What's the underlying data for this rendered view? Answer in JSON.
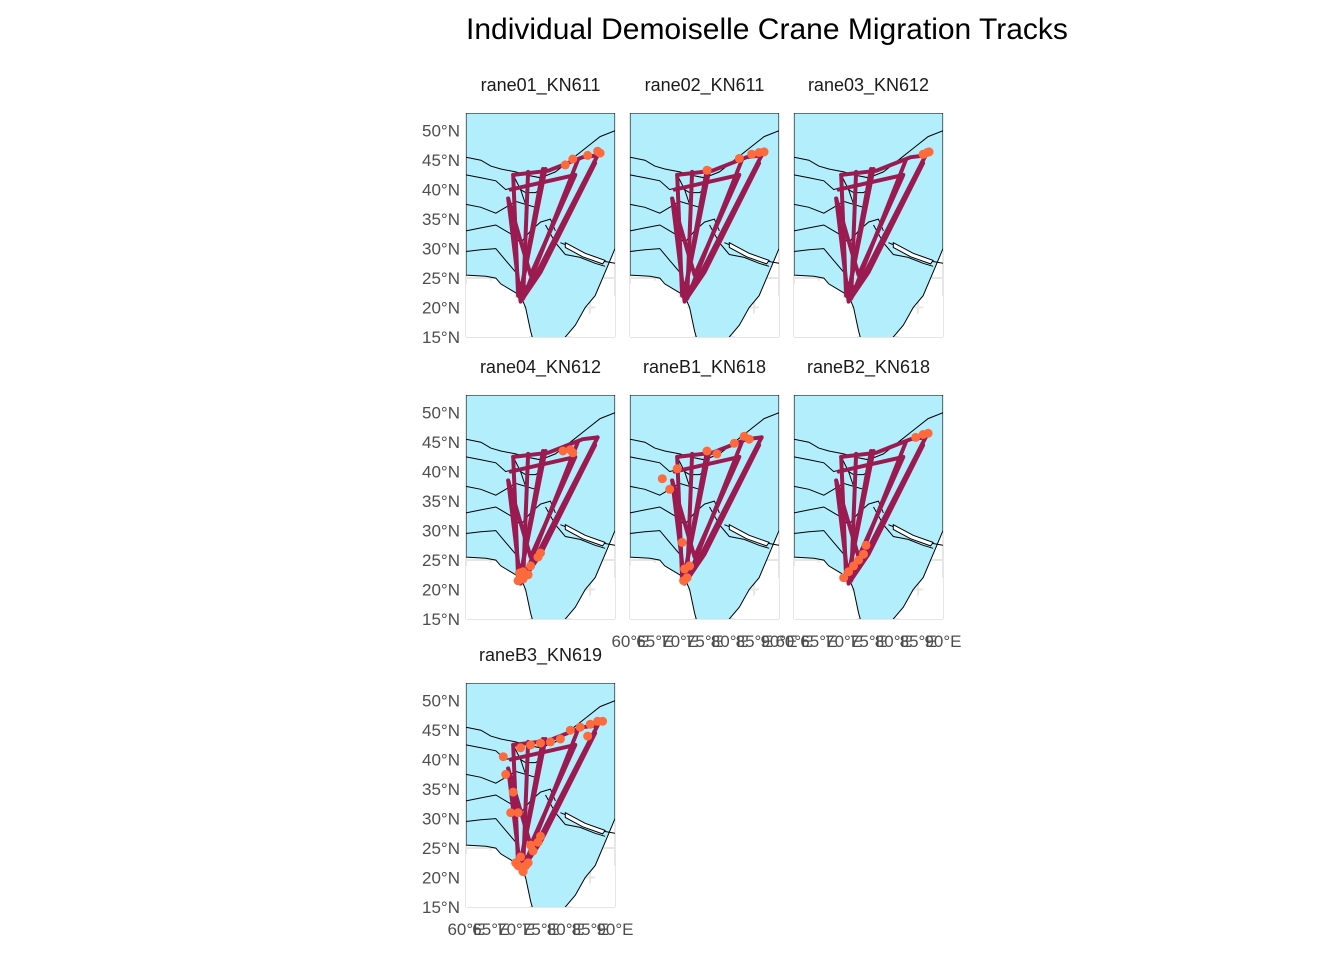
{
  "title": "Individual Demoiselle Crane Migration Tracks",
  "colors": {
    "land": "#b3eefc",
    "land_outline": "#000000",
    "track": "#9b1b50",
    "points": "#ff6a3d",
    "grid": "#e6e6e6",
    "tick_text": "#4d4d4d"
  },
  "chart_data": {
    "type": "map",
    "grid": true,
    "xlim": [
      60,
      90
    ],
    "ylim": [
      15,
      53
    ],
    "y_ticks": [
      15,
      20,
      25,
      30,
      35,
      40,
      45,
      50
    ],
    "y_tick_labels": [
      "15°N",
      "20°N",
      "25°N",
      "30°N",
      "35°N",
      "40°N",
      "45°N",
      "50°N"
    ],
    "x_ticks": [
      60,
      65,
      70,
      75,
      80,
      85,
      90
    ],
    "x_tick_labels": [
      "60°E",
      "65°E",
      "70°E",
      "75°E",
      "80°E",
      "85°E",
      "90°E"
    ],
    "panels": [
      {
        "name": "crane01_KN611",
        "label": "rane01_KN611",
        "tracks": [
          [
            [
              69.5,
              42.5
            ],
            [
              76.5,
              43.2
            ],
            [
              83.5,
              45.5
            ],
            [
              86.5,
              45.8
            ]
          ],
          [
            [
              86.5,
              45.8
            ],
            [
              73.5,
              24.5
            ],
            [
              70.5,
              22.0
            ],
            [
              69.5,
              42.5
            ]
          ],
          [
            [
              68.5,
              38.5
            ],
            [
              71.0,
              21.0
            ],
            [
              75.0,
              26.0
            ],
            [
              86.0,
              44.5
            ]
          ],
          [
            [
              69.0,
              40.0
            ],
            [
              82.0,
              42.5
            ],
            [
              73.0,
              25.5
            ],
            [
              68.5,
              38.5
            ]
          ],
          [
            [
              72.5,
              43.0
            ],
            [
              71.5,
              21.5
            ],
            [
              82.5,
              45.0
            ]
          ],
          [
            [
              75.5,
              43.5
            ],
            [
              71.0,
              22.5
            ],
            [
              76.0,
              43.5
            ]
          ]
        ],
        "points": [
          [
            80.0,
            44.2
          ],
          [
            81.5,
            45.2
          ],
          [
            84.5,
            45.8
          ],
          [
            86.5,
            46.5
          ],
          [
            87.0,
            46.2
          ]
        ]
      },
      {
        "name": "crane02_KN611",
        "label": "rane02_KN611",
        "tracks": [
          [
            [
              69.5,
              42.5
            ],
            [
              76.5,
              43.2
            ],
            [
              83.5,
              45.5
            ],
            [
              86.5,
              45.8
            ]
          ],
          [
            [
              86.5,
              45.8
            ],
            [
              73.5,
              24.5
            ],
            [
              70.5,
              22.0
            ],
            [
              69.5,
              42.5
            ]
          ],
          [
            [
              68.5,
              38.5
            ],
            [
              71.0,
              21.0
            ],
            [
              75.0,
              26.0
            ],
            [
              86.0,
              44.5
            ]
          ],
          [
            [
              69.0,
              40.0
            ],
            [
              82.0,
              42.5
            ],
            [
              73.0,
              25.5
            ],
            [
              68.5,
              38.5
            ]
          ],
          [
            [
              72.5,
              43.0
            ],
            [
              71.5,
              21.5
            ],
            [
              82.5,
              45.0
            ]
          ],
          [
            [
              75.5,
              43.5
            ],
            [
              71.0,
              22.5
            ],
            [
              76.0,
              43.5
            ]
          ]
        ],
        "points": [
          [
            75.5,
            43.3
          ],
          [
            82.0,
            45.3
          ],
          [
            84.5,
            46.0
          ],
          [
            86.0,
            46.3
          ],
          [
            87.0,
            46.4
          ]
        ]
      },
      {
        "name": "crane03_KN612",
        "label": "rane03_KN612",
        "tracks": [
          [
            [
              69.5,
              42.5
            ],
            [
              76.5,
              43.2
            ],
            [
              83.5,
              45.5
            ],
            [
              86.5,
              45.8
            ]
          ],
          [
            [
              86.5,
              45.8
            ],
            [
              73.5,
              24.5
            ],
            [
              70.5,
              22.0
            ],
            [
              69.5,
              42.5
            ]
          ],
          [
            [
              68.5,
              38.5
            ],
            [
              71.0,
              21.0
            ],
            [
              75.0,
              26.0
            ],
            [
              86.0,
              44.5
            ]
          ],
          [
            [
              69.0,
              40.0
            ],
            [
              82.0,
              42.5
            ],
            [
              73.0,
              25.5
            ],
            [
              68.5,
              38.5
            ]
          ],
          [
            [
              72.5,
              43.0
            ],
            [
              71.5,
              21.5
            ],
            [
              82.5,
              45.0
            ]
          ],
          [
            [
              75.5,
              43.5
            ],
            [
              71.0,
              22.5
            ],
            [
              76.0,
              43.5
            ]
          ]
        ],
        "points": [
          [
            86.0,
            46.0
          ],
          [
            86.8,
            46.3
          ],
          [
            87.2,
            46.4
          ]
        ]
      },
      {
        "name": "crane04_KN612",
        "label": "rane04_KN612",
        "tracks": [
          [
            [
              69.5,
              42.5
            ],
            [
              76.5,
              43.2
            ],
            [
              83.5,
              45.5
            ],
            [
              86.5,
              45.8
            ]
          ],
          [
            [
              86.5,
              45.8
            ],
            [
              73.5,
              24.5
            ],
            [
              70.5,
              22.0
            ],
            [
              69.5,
              42.5
            ]
          ],
          [
            [
              68.5,
              38.5
            ],
            [
              71.0,
              21.0
            ],
            [
              75.0,
              26.0
            ],
            [
              86.0,
              44.5
            ]
          ],
          [
            [
              69.0,
              40.0
            ],
            [
              82.0,
              42.5
            ],
            [
              73.0,
              25.5
            ],
            [
              68.5,
              38.5
            ]
          ],
          [
            [
              72.5,
              43.0
            ],
            [
              71.5,
              21.5
            ],
            [
              82.5,
              45.0
            ]
          ],
          [
            [
              75.5,
              43.5
            ],
            [
              71.0,
              22.5
            ],
            [
              76.0,
              43.5
            ]
          ]
        ],
        "points": [
          [
            79.5,
            43.5
          ],
          [
            81.0,
            43.7
          ],
          [
            81.5,
            43.2
          ],
          [
            74.5,
            25.5
          ],
          [
            75.0,
            26.2
          ],
          [
            73.0,
            24.0
          ],
          [
            71.5,
            23.0
          ],
          [
            71.0,
            22.0
          ],
          [
            70.5,
            21.5
          ],
          [
            71.5,
            21.8
          ],
          [
            72.5,
            22.5
          ],
          [
            70.8,
            22.8
          ]
        ]
      },
      {
        "name": "craneB1_KN618",
        "label": "raneB1_KN618",
        "tracks": [
          [
            [
              69.5,
              42.5
            ],
            [
              76.5,
              43.2
            ],
            [
              83.5,
              45.5
            ],
            [
              86.5,
              45.8
            ]
          ],
          [
            [
              86.5,
              45.8
            ],
            [
              73.5,
              24.5
            ],
            [
              70.5,
              22.0
            ],
            [
              69.5,
              42.5
            ]
          ],
          [
            [
              68.5,
              38.5
            ],
            [
              71.0,
              21.0
            ],
            [
              75.0,
              26.0
            ],
            [
              86.0,
              44.5
            ]
          ],
          [
            [
              69.0,
              40.0
            ],
            [
              82.0,
              42.5
            ],
            [
              73.0,
              25.5
            ],
            [
              68.5,
              38.5
            ]
          ],
          [
            [
              72.5,
              43.0
            ],
            [
              71.5,
              21.5
            ],
            [
              82.5,
              45.0
            ]
          ],
          [
            [
              75.5,
              43.5
            ],
            [
              71.0,
              22.5
            ],
            [
              76.0,
              43.5
            ]
          ]
        ],
        "points": [
          [
            66.5,
            38.8
          ],
          [
            68.0,
            37.0
          ],
          [
            69.5,
            40.5
          ],
          [
            70.5,
            28.0
          ],
          [
            75.5,
            43.5
          ],
          [
            77.5,
            43.0
          ],
          [
            81.0,
            44.8
          ],
          [
            83.0,
            46.0
          ],
          [
            84.0,
            45.5
          ],
          [
            71.0,
            23.5
          ],
          [
            71.5,
            22.0
          ],
          [
            70.8,
            21.5
          ],
          [
            72.0,
            24.0
          ]
        ]
      },
      {
        "name": "craneB2_KN618",
        "label": "raneB2_KN618",
        "tracks": [
          [
            [
              69.5,
              42.5
            ],
            [
              76.5,
              43.2
            ],
            [
              83.5,
              45.5
            ],
            [
              86.5,
              45.8
            ]
          ],
          [
            [
              86.5,
              45.8
            ],
            [
              73.5,
              24.5
            ],
            [
              70.5,
              22.0
            ],
            [
              69.5,
              42.5
            ]
          ],
          [
            [
              68.5,
              38.5
            ],
            [
              71.0,
              21.0
            ],
            [
              75.0,
              26.0
            ],
            [
              86.0,
              44.5
            ]
          ],
          [
            [
              69.0,
              40.0
            ],
            [
              82.0,
              42.5
            ],
            [
              73.0,
              25.5
            ],
            [
              68.5,
              38.5
            ]
          ],
          [
            [
              72.5,
              43.0
            ],
            [
              71.5,
              21.5
            ],
            [
              82.5,
              45.0
            ]
          ],
          [
            [
              75.5,
              43.5
            ],
            [
              71.0,
              22.5
            ],
            [
              76.0,
              43.5
            ]
          ]
        ],
        "points": [
          [
            84.5,
            45.8
          ],
          [
            86.0,
            46.3
          ],
          [
            87.0,
            46.5
          ],
          [
            73.0,
            25.0
          ],
          [
            74.0,
            26.0
          ],
          [
            72.0,
            24.0
          ],
          [
            71.0,
            23.0
          ],
          [
            70.0,
            22.0
          ],
          [
            74.5,
            27.5
          ]
        ]
      },
      {
        "name": "craneB3_KN619",
        "label": "raneB3_KN619",
        "tracks": [
          [
            [
              69.5,
              42.5
            ],
            [
              76.5,
              43.2
            ],
            [
              83.5,
              45.5
            ],
            [
              86.5,
              45.8
            ]
          ],
          [
            [
              86.5,
              45.8
            ],
            [
              73.5,
              24.5
            ],
            [
              70.5,
              22.0
            ],
            [
              69.5,
              42.5
            ]
          ],
          [
            [
              68.5,
              38.5
            ],
            [
              71.0,
              21.0
            ],
            [
              75.0,
              26.0
            ],
            [
              86.0,
              44.5
            ]
          ],
          [
            [
              69.0,
              40.0
            ],
            [
              82.0,
              42.5
            ],
            [
              73.0,
              25.5
            ],
            [
              68.5,
              38.5
            ]
          ],
          [
            [
              72.5,
              43.0
            ],
            [
              71.5,
              21.5
            ],
            [
              82.5,
              45.0
            ]
          ],
          [
            [
              75.5,
              43.5
            ],
            [
              71.0,
              22.5
            ],
            [
              76.0,
              43.5
            ]
          ]
        ],
        "points": [
          [
            67.5,
            40.5
          ],
          [
            68.0,
            37.5
          ],
          [
            69.5,
            34.5
          ],
          [
            69.0,
            31.0
          ],
          [
            70.5,
            31.0
          ],
          [
            71.0,
            42.0
          ],
          [
            73.0,
            42.5
          ],
          [
            75.0,
            42.8
          ],
          [
            77.0,
            43.0
          ],
          [
            79.0,
            43.5
          ],
          [
            81.0,
            45.0
          ],
          [
            83.0,
            45.5
          ],
          [
            85.0,
            46.0
          ],
          [
            86.5,
            46.5
          ],
          [
            87.5,
            46.5
          ],
          [
            84.5,
            44.0
          ],
          [
            70.5,
            22.0
          ],
          [
            71.5,
            21.0
          ],
          [
            72.5,
            22.5
          ],
          [
            73.5,
            24.5
          ],
          [
            74.5,
            26.0
          ],
          [
            71.0,
            23.5
          ],
          [
            72.0,
            22.0
          ],
          [
            73.0,
            25.5
          ],
          [
            70.0,
            22.5
          ],
          [
            75.0,
            27.0
          ]
        ]
      }
    ]
  }
}
